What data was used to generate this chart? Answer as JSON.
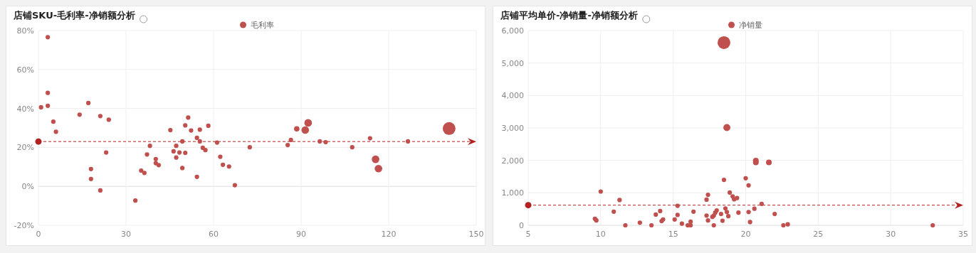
{
  "chart_data": [
    {
      "type": "bubble",
      "title": "店铺SKU-毛利率-净销额分析",
      "legend": "top",
      "grid": true,
      "xlim": [
        0,
        150
      ],
      "xticks": [
        0,
        30,
        60,
        90,
        120,
        150
      ],
      "ylim": [
        -20,
        80
      ],
      "yticks": [
        {
          "value": -20,
          "label": "-20%"
        },
        {
          "value": 0,
          "label": "0%"
        },
        {
          "value": 20,
          "label": "20%"
        },
        {
          "value": 40,
          "label": "40%"
        },
        {
          "value": 60,
          "label": "60%"
        },
        {
          "value": 80,
          "label": "80%"
        }
      ],
      "ref_lines": [
        {
          "axis": "y",
          "value": 23,
          "color": "#b22222",
          "line_style": "dashed"
        }
      ],
      "series": [
        {
          "name": "毛利率",
          "color": "#c0504d",
          "x": [
            3.2,
            0.9,
            3.2,
            3.2,
            5.1,
            6.0,
            14.1,
            17.1,
            21.2,
            24.1,
            23.2,
            18.0,
            18.0,
            21.2,
            33.2,
            35.2,
            36.3,
            37.2,
            38.2,
            40.2,
            40.2,
            41.2,
            45.2,
            46.3,
            47.2,
            47.2,
            48.3,
            49.3,
            49.3,
            50.3,
            50.3,
            51.3,
            52.3,
            54.3,
            54.3,
            55.3,
            55.3,
            56.3,
            57.2,
            58.2,
            61.2,
            62.3,
            63.2,
            65.3,
            67.3,
            72.4,
            85.4,
            86.5,
            88.5,
            91.4,
            92.4,
            96.4,
            98.4,
            107.5,
            113.6,
            115.5,
            116.5,
            126.6,
            140.7
          ],
          "values": [
            76.6,
            40.6,
            48,
            41.4,
            33.2,
            28,
            36.8,
            42.8,
            36.1,
            34.2,
            17.4,
            8.9,
            3.8,
            -2.1,
            -7.3,
            8.1,
            6.9,
            16.4,
            20.8,
            14,
            11.9,
            10.9,
            28.9,
            18,
            20.8,
            14.8,
            17.4,
            23.1,
            9.4,
            31.3,
            17.2,
            35.3,
            28.7,
            24.9,
            4.9,
            29.1,
            23.1,
            19.8,
            18.6,
            31.1,
            22.5,
            15.2,
            11.1,
            10.2,
            0.6,
            20.1,
            21.2,
            23.8,
            29.5,
            28.9,
            32.6,
            23.1,
            22.7,
            20.1,
            24.7,
            13.9,
            9.1,
            23.1,
            29.7
          ],
          "sizes": [
            0.12,
            0.12,
            0.12,
            0.12,
            0.12,
            0.12,
            0.12,
            0.12,
            0.12,
            0.12,
            0.12,
            0.12,
            0.12,
            0.12,
            0.12,
            0.12,
            0.12,
            0.12,
            0.12,
            0.12,
            0.12,
            0.12,
            0.12,
            0.12,
            0.12,
            0.12,
            0.12,
            0.12,
            0.12,
            0.12,
            0.12,
            0.12,
            0.12,
            0.12,
            0.12,
            0.12,
            0.12,
            0.12,
            0.12,
            0.12,
            0.12,
            0.12,
            0.12,
            0.12,
            0.12,
            0.12,
            0.12,
            0.12,
            0.18,
            0.35,
            0.35,
            0.12,
            0.12,
            0.12,
            0.12,
            0.35,
            0.35,
            0.12,
            1
          ]
        }
      ]
    },
    {
      "type": "bubble",
      "title": "店铺平均单价-净销量-净销额分析",
      "legend": "top",
      "grid": true,
      "xlim": [
        5,
        35
      ],
      "xticks": [
        5,
        10,
        15,
        20,
        25,
        30,
        35
      ],
      "ylim": [
        0,
        6000
      ],
      "yticks": [
        0,
        {
          "value": 1000,
          "label": "1,000"
        },
        {
          "value": 2000,
          "label": "2,000"
        },
        {
          "value": 3000,
          "label": "3,000"
        },
        {
          "value": 4000,
          "label": "4,000"
        },
        {
          "value": 5000,
          "label": "5,000"
        },
        {
          "value": 6000,
          "label": "6,000"
        }
      ],
      "ref_lines": [
        {
          "axis": "y",
          "value": 620,
          "color": "#b22222",
          "line_style": "dashed"
        }
      ],
      "series": [
        {
          "name": "净销量",
          "color": "#c0504d",
          "x": [
            18.5,
            18.7,
            18.5,
            10.0,
            11.3,
            17.4,
            17.3,
            15.3,
            9.6,
            9.7,
            10.9,
            11.7,
            12.7,
            13.5,
            13.8,
            14.1,
            14.2,
            14.3,
            15.1,
            15.3,
            15.6,
            16.4,
            16.0,
            16.2,
            16.2,
            17.3,
            17.4,
            17.7,
            17.8,
            17.9,
            18.0,
            17.8,
            18.3,
            18.4,
            18.6,
            18.7,
            18.8,
            18.9,
            19.1,
            19.2,
            19.4,
            19.5,
            20.0,
            20.2,
            20.2,
            20.3,
            20.6,
            20.7,
            20.7,
            21.6,
            21.1,
            22.0,
            22.6,
            22.9,
            32.9
          ],
          "values": [
            5630,
            3010,
            1400,
            1040,
            780,
            940,
            790,
            600,
            200,
            150,
            420,
            0,
            80,
            0,
            330,
            440,
            130,
            180,
            180,
            320,
            50,
            420,
            0,
            110,
            0,
            300,
            150,
            260,
            300,
            390,
            460,
            0,
            350,
            140,
            520,
            410,
            280,
            1010,
            890,
            800,
            840,
            390,
            1450,
            1230,
            410,
            100,
            510,
            1990,
            1940,
            1940,
            660,
            350,
            0,
            30,
            0
          ],
          "sizes": [
            1,
            0.3,
            0.12,
            0.12,
            0.12,
            0.12,
            0.12,
            0.12,
            0.12,
            0.12,
            0.12,
            0.12,
            0.12,
            0.12,
            0.12,
            0.12,
            0.12,
            0.12,
            0.12,
            0.12,
            0.12,
            0.12,
            0.12,
            0.12,
            0.12,
            0.12,
            0.12,
            0.12,
            0.12,
            0.12,
            0.12,
            0.12,
            0.12,
            0.12,
            0.12,
            0.12,
            0.12,
            0.12,
            0.12,
            0.12,
            0.12,
            0.12,
            0.12,
            0.12,
            0.12,
            0.12,
            0.12,
            0.2,
            0.2,
            0.2,
            0.12,
            0.12,
            0.12,
            0.12,
            0.12
          ]
        }
      ]
    }
  ]
}
